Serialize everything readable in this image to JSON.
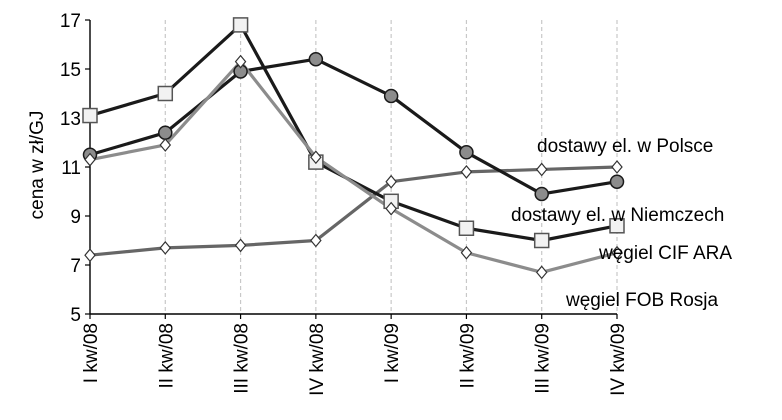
{
  "chart_data": {
    "type": "line",
    "ylabel": "cena w zł/GJ",
    "ylim": [
      5,
      17
    ],
    "yticks": [
      5,
      7,
      9,
      11,
      13,
      15,
      17
    ],
    "grid": "vertical-dashed",
    "categories": [
      "I kw/08",
      "II kw/08",
      "III kw/08",
      "IV kw/08",
      "I kw/09",
      "II kw/09",
      "III kw/09",
      "IV kw/09"
    ],
    "series": [
      {
        "name": "dostawy el. w Polsce",
        "values": [
          7.4,
          7.7,
          7.8,
          8.0,
          10.4,
          10.8,
          10.9,
          11.0
        ],
        "color": "#666666",
        "marker": "diamond-open"
      },
      {
        "name": "dostawy el. w Niemczech",
        "values": [
          11.5,
          12.4,
          14.9,
          15.4,
          13.9,
          11.6,
          9.9,
          10.4
        ],
        "color": "#1a1a1a",
        "marker": "circle-filled"
      },
      {
        "name": "węgiel CIF ARA",
        "values": [
          13.1,
          14.0,
          16.8,
          11.2,
          9.6,
          8.5,
          8.0,
          8.6
        ],
        "color": "#1a1a1a",
        "marker": "square-open"
      },
      {
        "name": "węgiel FOB Rosja",
        "values": [
          11.3,
          11.9,
          15.3,
          11.4,
          9.3,
          7.5,
          6.7,
          7.5
        ],
        "color": "#8c8c8c",
        "marker": "diamond-open"
      }
    ],
    "annotations": [
      "dostawy el. w Polsce",
      "dostawy el. w Niemczech",
      "węgiel CIF ARA",
      "węgiel FOB Rosja"
    ]
  }
}
